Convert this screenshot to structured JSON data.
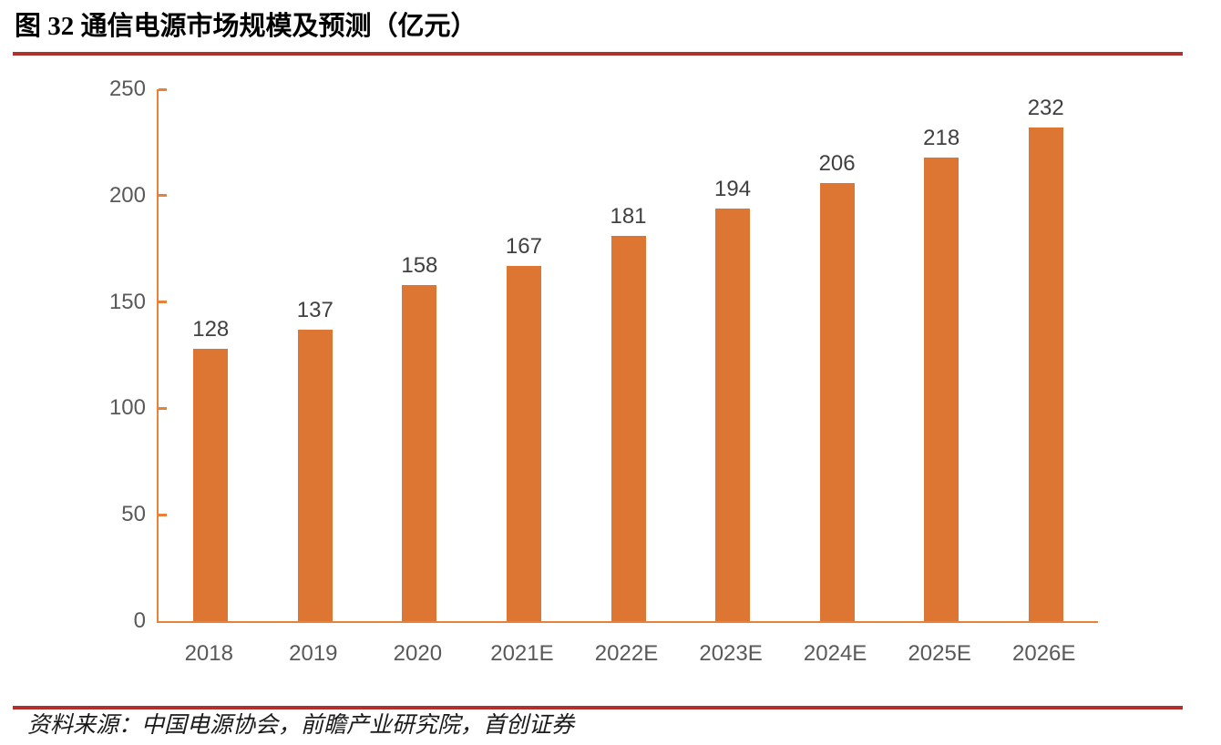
{
  "page": {
    "title": "图 32 通信电源市场规模及预测（亿元）",
    "source": "资料来源：中国电源协会，前瞻产业研究院，首创证券"
  },
  "colors": {
    "bar": "#DD7632",
    "axis": "#E8823B",
    "rule_red": "#B0302B",
    "value_label": "#404040",
    "axis_label": "#595959"
  },
  "chart_data": {
    "type": "bar",
    "title": "图 32 通信电源市场规模及预测（亿元）",
    "categories": [
      "2018",
      "2019",
      "2020",
      "2021E",
      "2022E",
      "2023E",
      "2024E",
      "2025E",
      "2026E"
    ],
    "values": [
      128,
      137,
      158,
      167,
      181,
      194,
      206,
      218,
      232
    ],
    "xlabel": "",
    "ylabel": "",
    "ylim": [
      0,
      250
    ],
    "yticks": [
      0,
      50,
      100,
      150,
      200,
      250
    ],
    "grid": false,
    "legend": "none",
    "bar_label_position": "above",
    "source": "资料来源：中国电源协会，前瞻产业研究院，首创证券"
  }
}
